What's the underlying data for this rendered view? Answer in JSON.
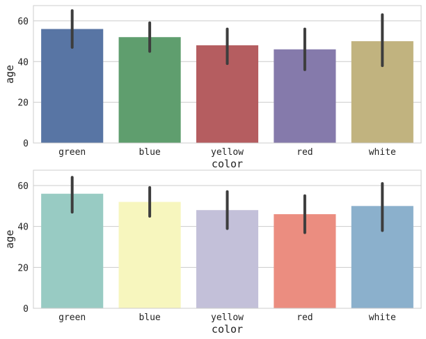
{
  "chart_data": [
    {
      "type": "bar",
      "xlabel": "color",
      "ylabel": "age",
      "categories": [
        "green",
        "blue",
        "yellow",
        "red",
        "white"
      ],
      "values": [
        56,
        52,
        48,
        46,
        50
      ],
      "error_low": [
        47,
        45,
        39,
        36,
        38
      ],
      "error_high": [
        65,
        59,
        56,
        56,
        63
      ],
      "colors": [
        "#5875a4",
        "#5f9e6e",
        "#b55d60",
        "#857aab",
        "#c1b37f"
      ],
      "ylim": [
        0,
        67.5
      ],
      "yticks": [
        0,
        20,
        40,
        60
      ],
      "grid": true
    },
    {
      "type": "bar",
      "xlabel": "color",
      "ylabel": "age",
      "categories": [
        "green",
        "blue",
        "yellow",
        "red",
        "white"
      ],
      "values": [
        56,
        52,
        48,
        46,
        50
      ],
      "error_low": [
        47,
        45,
        39,
        37,
        38
      ],
      "error_high": [
        64,
        59,
        57,
        55,
        61
      ],
      "colors": [
        "#98cbc3",
        "#f7f6be",
        "#c3c0d9",
        "#eb8d80",
        "#8bb0cc"
      ],
      "ylim": [
        0,
        67.5
      ],
      "yticks": [
        0,
        20,
        40,
        60
      ],
      "grid": true
    }
  ]
}
